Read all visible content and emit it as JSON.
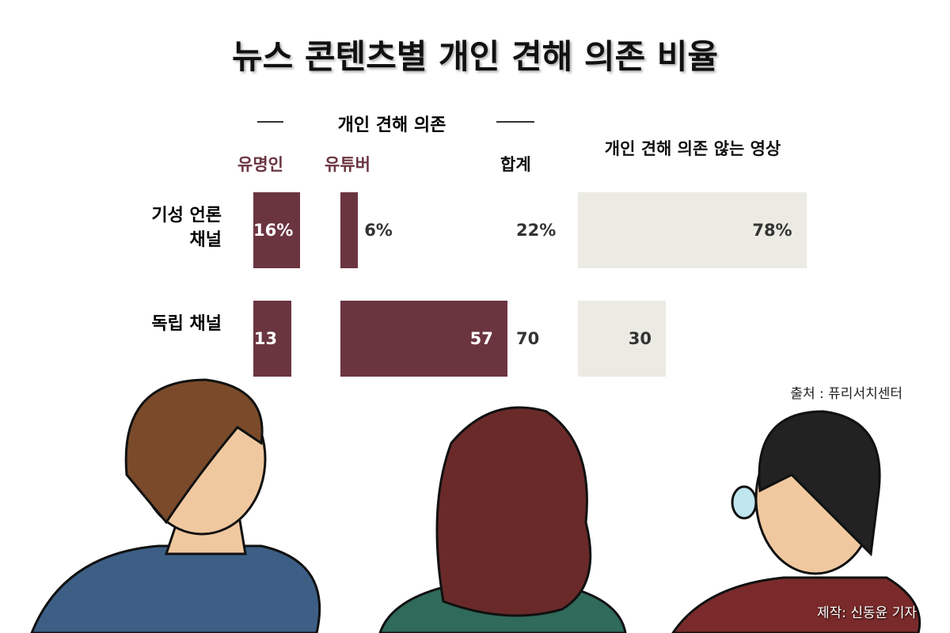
{
  "chart_data": {
    "type": "bar",
    "title": "뉴스 콘텐츠별 개인 견해 의존 비율",
    "group_label": "개인 견해 의존",
    "categories": [
      "기성 언론 채널",
      "독립 채널"
    ],
    "series": [
      {
        "name": "유명인",
        "color": "#6b3540",
        "values": [
          16,
          13
        ],
        "value_labels": [
          "16%",
          "13"
        ]
      },
      {
        "name": "유튜버",
        "color": "#6b3540",
        "values": [
          6,
          57
        ],
        "value_labels": [
          "6%",
          "57"
        ]
      },
      {
        "name": "합계",
        "values": [
          22,
          70
        ],
        "value_labels": [
          "22%",
          "70"
        ]
      },
      {
        "name": "개인 견해 의존 않는 영상",
        "color": "#ebebe3",
        "values": [
          78,
          30
        ],
        "value_labels": [
          "78%",
          "30"
        ]
      }
    ],
    "source": "출처 : 퓨리서치센터",
    "credit": "제작: 신동윤 기자"
  }
}
